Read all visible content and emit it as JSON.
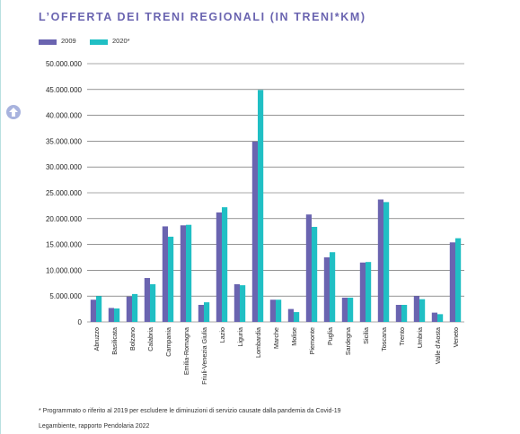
{
  "colors": {
    "series_2009": "#6a64b0",
    "series_2020": "#20bfc4",
    "title": "#6a64b0",
    "grid": "#555555"
  },
  "icon": "up-arrow-icon",
  "chart_data": {
    "type": "bar",
    "title": "L’OFFERTA DEI TRENI REGIONALI (IN TRENI*KM)",
    "categories": [
      "Abruzzo",
      "Basilicata",
      "Bolzano",
      "Calabria",
      "Campania",
      "Emilia-Romagna",
      "Friuli-Venezia Giulia",
      "Lazio",
      "Liguria",
      "Lombardia",
      "Marche",
      "Molise",
      "Piemonte",
      "Puglia",
      "Sardegna",
      "Sicilia",
      "Toscana",
      "Trento",
      "Umbria",
      "Valle d'Aosta",
      "Veneto"
    ],
    "series": [
      {
        "name": "2009",
        "values": [
          4300000,
          2700000,
          4900000,
          8500000,
          18500000,
          18700000,
          3300000,
          21200000,
          7300000,
          34900000,
          4300000,
          2500000,
          20800000,
          12500000,
          4700000,
          11500000,
          23700000,
          3300000,
          5000000,
          1800000,
          15400000
        ]
      },
      {
        "name": "2020*",
        "values": [
          5000000,
          2600000,
          5400000,
          7300000,
          16500000,
          18800000,
          3800000,
          22200000,
          7100000,
          44900000,
          4300000,
          1900000,
          18400000,
          13500000,
          4700000,
          11600000,
          23200000,
          3300000,
          4400000,
          1500000,
          16200000
        ]
      }
    ],
    "yticks": [
      "0",
      "5.000.000",
      "10.000.000",
      "15.000.000",
      "20.000.000",
      "25.000.000",
      "30.000.000",
      "35.000.000",
      "40.000.000",
      "45.000.000",
      "50.000.000"
    ],
    "ylim": [
      0,
      50000000
    ],
    "xlabel": "",
    "ylabel": "",
    "grid": true,
    "legend": "top-left"
  },
  "footnote": "* Programmato o riferito al 2019 per escludere le diminuzioni di servizio causate dalla pandemia da Covid-19",
  "source": "Legambiente, rapporto Pendolaria 2022"
}
